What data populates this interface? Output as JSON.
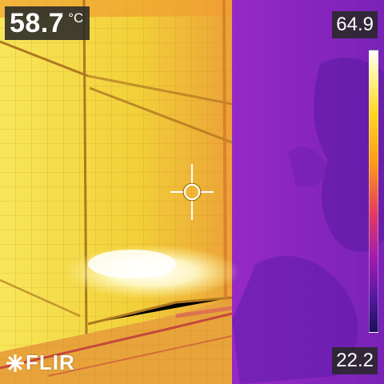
{
  "measurement": {
    "spot_temperature": "58.7",
    "unit": "°C"
  },
  "color_scale": {
    "max": "64.9",
    "min": "22.2",
    "palette": "iron",
    "colors": [
      "#ffffff",
      "#fff6a0",
      "#ffd820",
      "#ff9a18",
      "#e23a62",
      "#a01bb0",
      "#5518a0",
      "#18105a"
    ]
  },
  "brand": {
    "logo_text": "FLIR"
  },
  "scene": {
    "subject": "solar-panels",
    "icons": [
      "crosshair-icon",
      "flir-logo-icon"
    ]
  }
}
